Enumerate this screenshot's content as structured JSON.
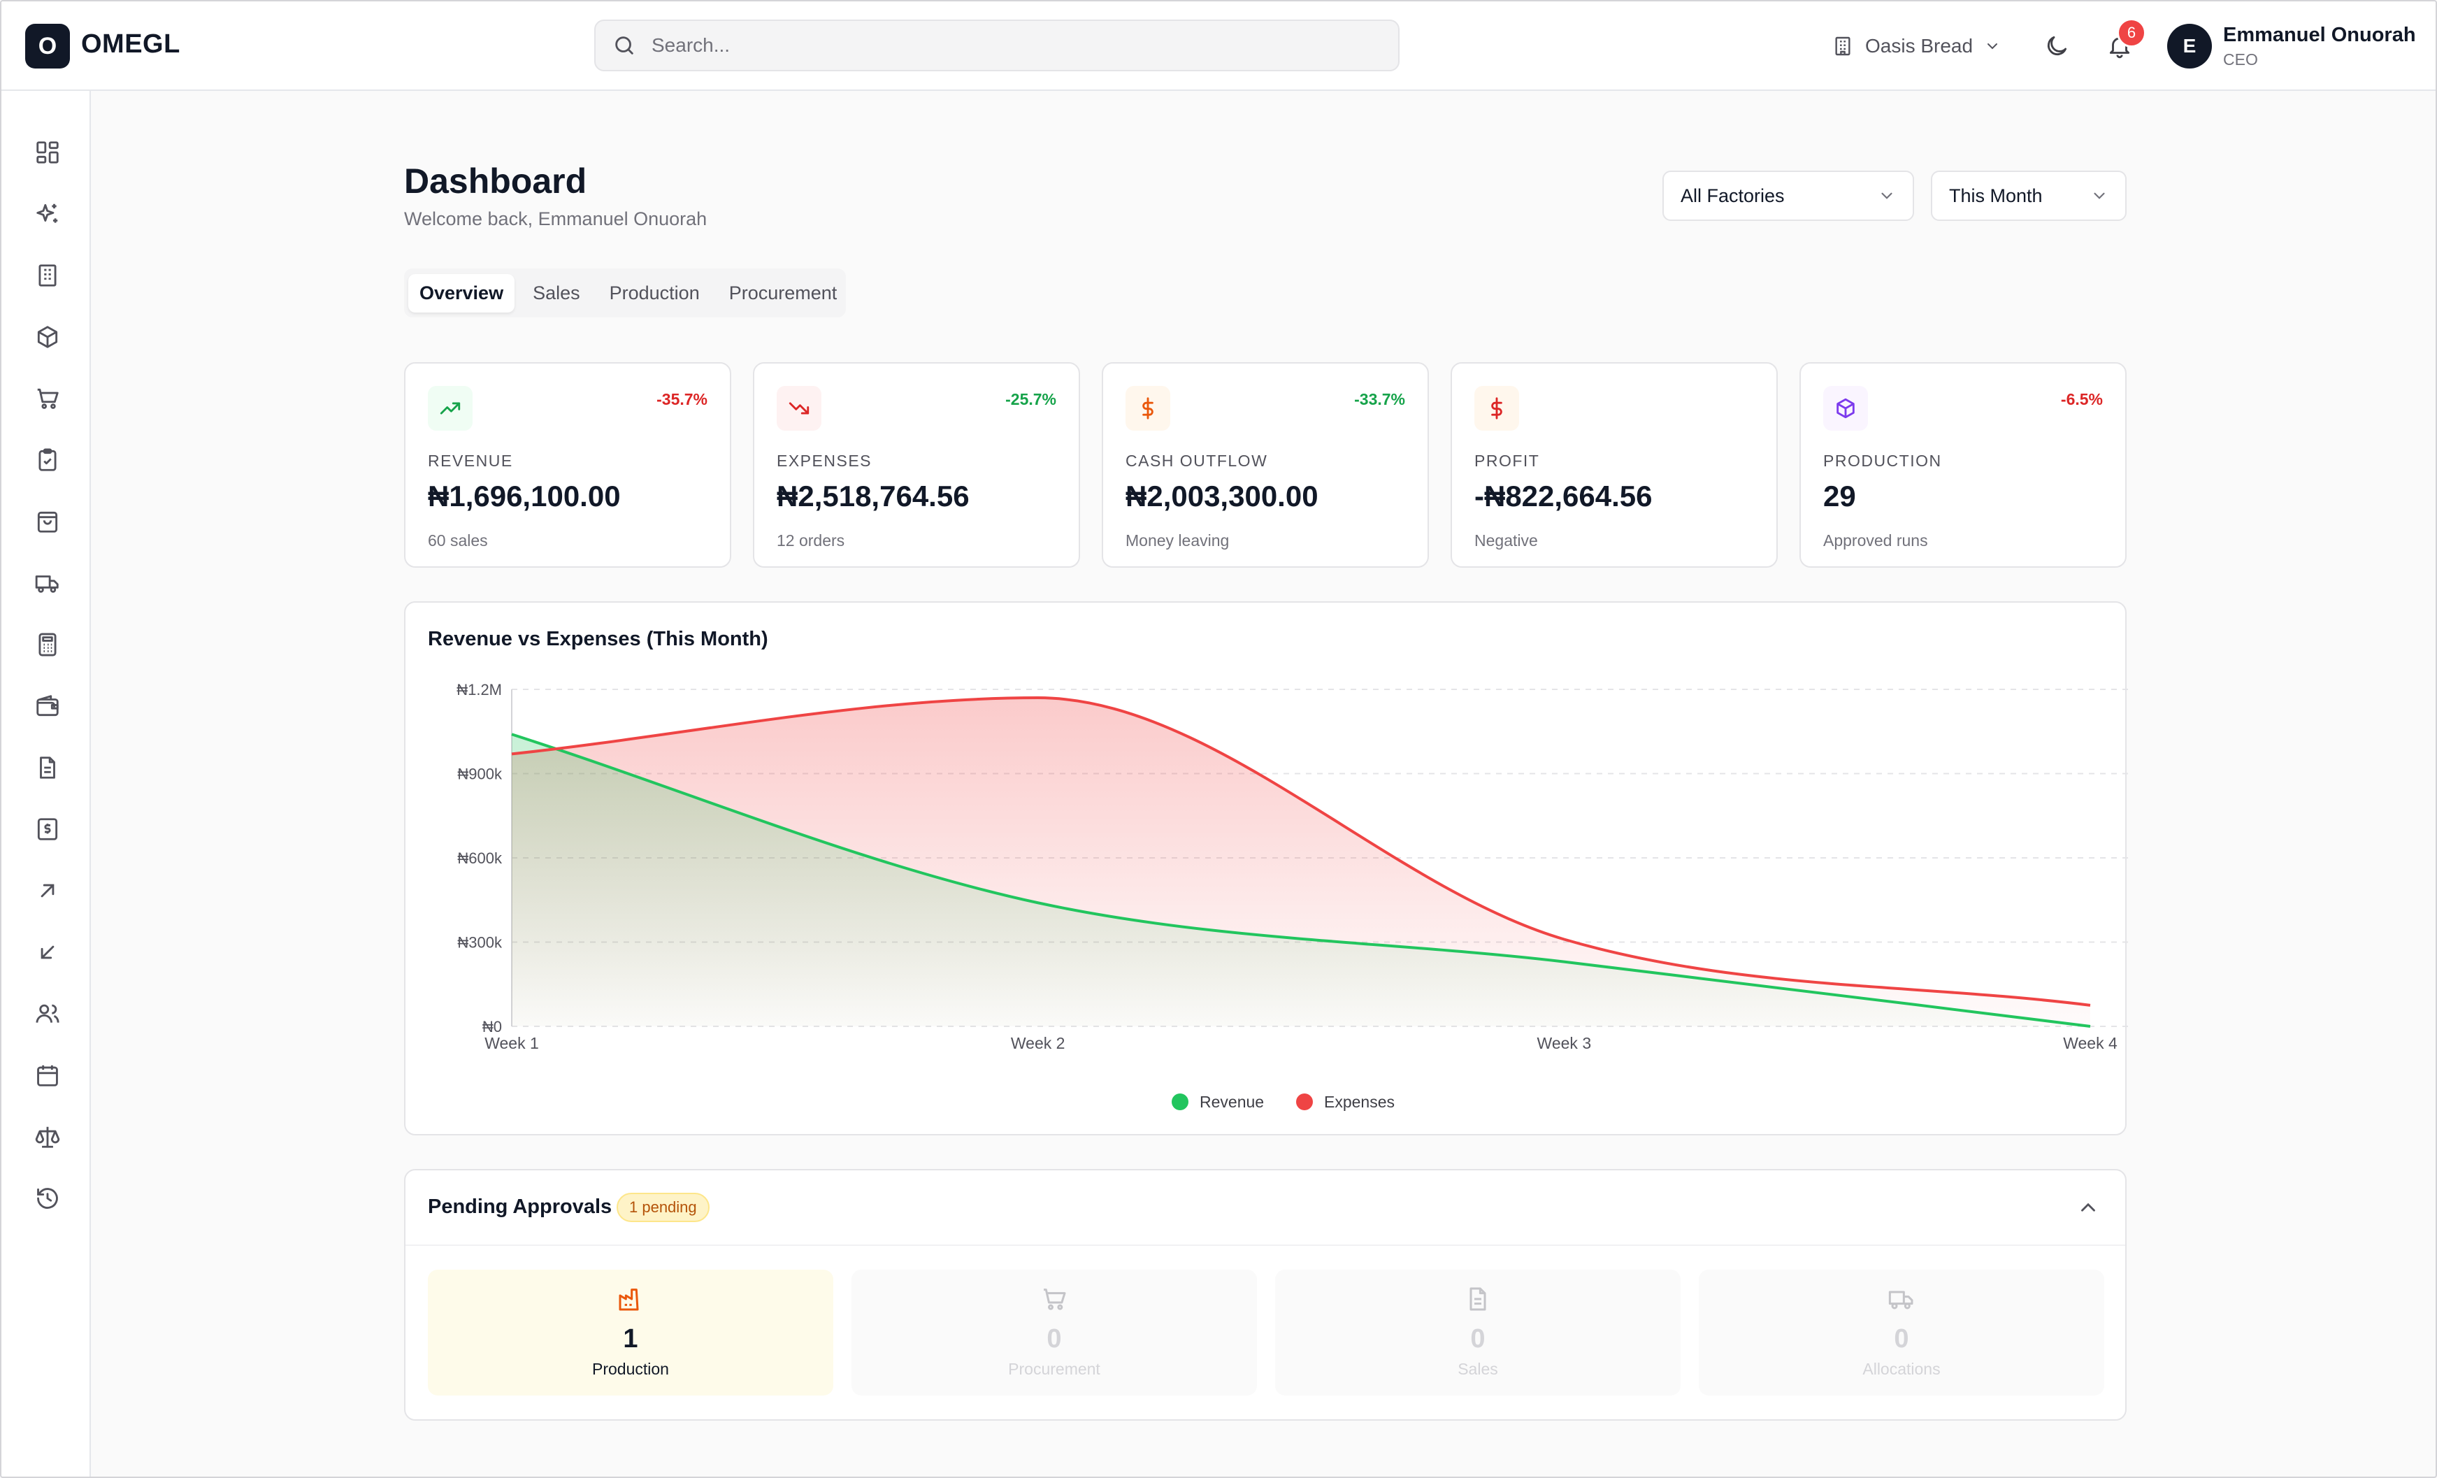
{
  "header": {
    "logo_letter": "O",
    "app_name": "OMEGL",
    "search_placeholder": "Search...",
    "company": "Oasis Bread",
    "notification_count": "6",
    "user": {
      "initial": "E",
      "name": "Emmanuel Onuorah",
      "role": "CEO"
    }
  },
  "sidebar": {
    "items": [
      {
        "icon": "dashboard-icon"
      },
      {
        "icon": "sparkles-icon"
      },
      {
        "icon": "factory-icon"
      },
      {
        "icon": "package-icon"
      },
      {
        "icon": "cart-icon"
      },
      {
        "icon": "clipboard-check-icon"
      },
      {
        "icon": "shopping-bag-icon"
      },
      {
        "icon": "truck-icon"
      },
      {
        "icon": "calculator-icon"
      },
      {
        "icon": "wallet-icon"
      },
      {
        "icon": "document-icon"
      },
      {
        "icon": "receipt-icon"
      },
      {
        "icon": "arrow-up-right-icon"
      },
      {
        "icon": "arrow-down-left-icon"
      },
      {
        "icon": "users-icon"
      },
      {
        "icon": "calendar-icon"
      },
      {
        "icon": "scale-icon"
      },
      {
        "icon": "history-icon"
      }
    ]
  },
  "page": {
    "title": "Dashboard",
    "subtitle": "Welcome back, Emmanuel Onuorah",
    "factory_filter": "All Factories",
    "period_filter": "This Month",
    "tabs": [
      "Overview",
      "Sales",
      "Production",
      "Procurement"
    ]
  },
  "kpis": [
    {
      "label": "REVENUE",
      "value": "₦1,696,100.00",
      "sub": "60 sales",
      "change": "-35.7%",
      "change_color": "#dc2626",
      "icon": "trending-up-icon",
      "icon_color": "#16a34a"
    },
    {
      "label": "EXPENSES",
      "value": "₦2,518,764.56",
      "sub": "12 orders",
      "change": "-25.7%",
      "change_color": "#16a34a",
      "icon": "trending-down-icon",
      "icon_color": "#dc2626"
    },
    {
      "label": "CASH OUTFLOW",
      "value": "₦2,003,300.00",
      "sub": "Money leaving",
      "change": "-33.7%",
      "change_color": "#16a34a",
      "icon": "dollar-icon",
      "icon_color": "#ea580c"
    },
    {
      "label": "PROFIT",
      "value": "-₦822,664.56",
      "sub": "Negative",
      "change": "",
      "change_color": "#dc2626",
      "icon": "dollar-icon",
      "icon_color": "#dc2626"
    },
    {
      "label": "PRODUCTION",
      "value": "29",
      "sub": "Approved runs",
      "change": "-6.5%",
      "change_color": "#dc2626",
      "icon": "box-icon",
      "icon_color": "#7c3aed"
    }
  ],
  "chart_data": {
    "type": "area",
    "title": "Revenue vs Expenses (This Month)",
    "categories": [
      "Week 1",
      "Week 2",
      "Week 3",
      "Week 4"
    ],
    "y_ticks": [
      "₦0",
      "₦300k",
      "₦600k",
      "₦900k",
      "₦1.2M"
    ],
    "ylim": [
      0,
      1200000
    ],
    "series": [
      {
        "name": "Revenue",
        "color": "#22c55e",
        "values": [
          1040000,
          440000,
          230000,
          0
        ]
      },
      {
        "name": "Expenses",
        "color": "#ef4444",
        "values": [
          970000,
          1170000,
          310000,
          75000
        ]
      }
    ],
    "grid": true,
    "legend": "bottom-center"
  },
  "approvals": {
    "title": "Pending Approvals",
    "badge": "1 pending",
    "items": [
      {
        "label": "Production",
        "count": "1",
        "icon": "factory-icon",
        "active": true
      },
      {
        "label": "Procurement",
        "count": "0",
        "icon": "cart-icon",
        "active": false
      },
      {
        "label": "Sales",
        "count": "0",
        "icon": "document-icon",
        "active": false
      },
      {
        "label": "Allocations",
        "count": "0",
        "icon": "truck-icon",
        "active": false
      }
    ]
  }
}
